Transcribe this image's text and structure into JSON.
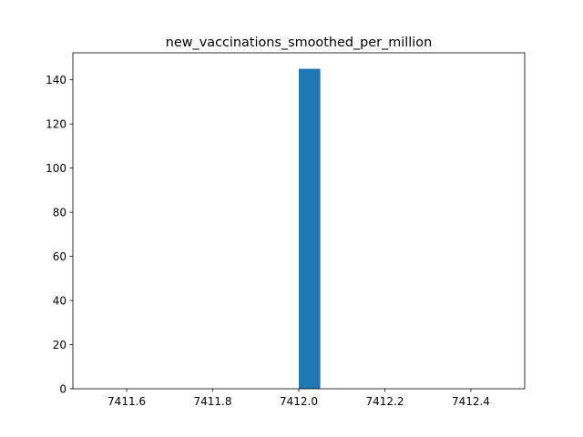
{
  "chart_data": {
    "type": "bar",
    "title": "new_vaccinations_smoothed_per_million",
    "xlabel": "",
    "ylabel": "",
    "xlim": [
      7411.475,
      7412.525
    ],
    "ylim": [
      0,
      152.25
    ],
    "x_ticks": [
      7411.6,
      7411.8,
      7412.0,
      7412.2,
      7412.4
    ],
    "x_tick_labels": [
      "7411.6",
      "7411.8",
      "7412.0",
      "7412.2",
      "7412.4"
    ],
    "y_ticks": [
      0,
      20,
      40,
      60,
      80,
      100,
      120,
      140
    ],
    "y_tick_labels": [
      "0",
      "20",
      "40",
      "60",
      "80",
      "100",
      "120",
      "140"
    ],
    "bins": [
      {
        "x0": 7412.0,
        "x1": 7412.05,
        "value": 145
      }
    ],
    "bar_color": "#1f77b4",
    "grid": false,
    "legend": "none"
  }
}
